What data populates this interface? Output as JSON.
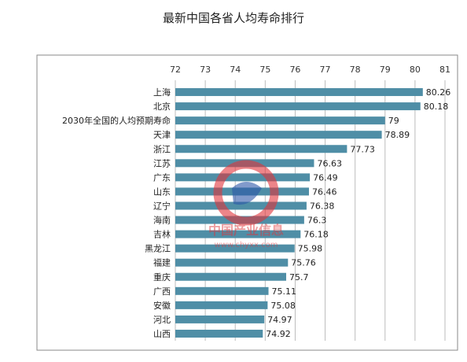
{
  "chart_data": {
    "type": "bar",
    "orientation": "horizontal",
    "title": "最新中国各省人均寿命排行",
    "categories": [
      "上海",
      "北京",
      "2030年全国的人均预期寿命",
      "天津",
      "浙江",
      "江苏",
      "广东",
      "山东",
      "辽宁",
      "海南",
      "吉林",
      "黑龙江",
      "福建",
      "重庆",
      "广西",
      "安徽",
      "河北",
      "山西"
    ],
    "values": [
      80.26,
      80.18,
      79,
      78.89,
      77.73,
      76.63,
      76.49,
      76.46,
      76.38,
      76.3,
      76.18,
      75.98,
      75.76,
      75.7,
      75.11,
      75.08,
      74.97,
      74.92
    ],
    "value_labels": [
      "80.26",
      "80.18",
      "79",
      "78.89",
      "77.73",
      "76.63",
      "76.49",
      "76.46",
      "76.38",
      "76.3",
      "76.18",
      "75.98",
      "75.76",
      "75.7",
      "75.11",
      "75.08",
      "74.97",
      "74.92"
    ],
    "xlim": [
      72,
      81
    ],
    "x_ticks": [
      "72",
      "73",
      "74",
      "75",
      "76",
      "77",
      "78",
      "79",
      "80",
      "81"
    ],
    "axis_position": "top",
    "grid": true,
    "bar_color": "#4f8ea6",
    "grid_color": "#bdbdbd"
  },
  "watermark": {
    "name": "中国产业信息",
    "url": "www.chyxx.com",
    "colors": {
      "red": "#e0343a",
      "blue": "#2c57a8"
    }
  }
}
